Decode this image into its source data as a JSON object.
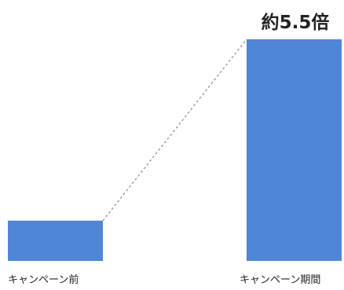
{
  "chart_data": {
    "type": "bar",
    "categories": [
      "キャンペーン前",
      "キャンペーン期間"
    ],
    "values": [
      1,
      5.5
    ],
    "annotation": "約5.5倍",
    "ylim": [
      0,
      5.5
    ],
    "grid": false,
    "connector_line": "dashed",
    "colors": {
      "bar": "#4f86d6",
      "connector": "#8a8a8a",
      "text": "#222222"
    }
  }
}
